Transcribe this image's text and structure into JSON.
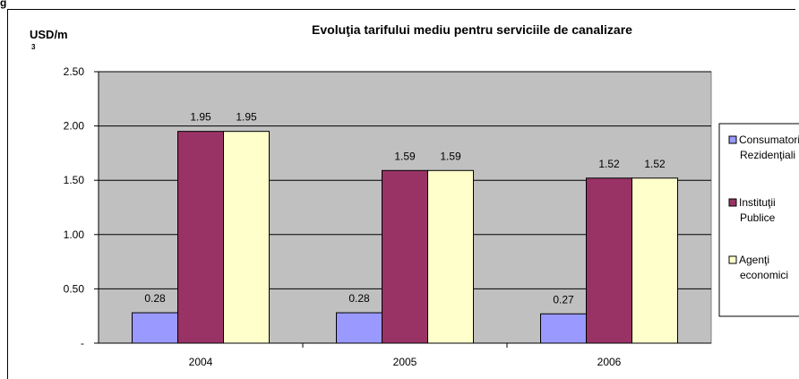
{
  "header_fragment": "g",
  "chart_data": {
    "type": "bar",
    "title": "Evoluţia tarifului mediu pentru serviciile de canalizare",
    "ylabel": "USD/m",
    "ylabel_superscript": "3",
    "xlabel": "",
    "categories": [
      "2004",
      "2005",
      "2006"
    ],
    "series": [
      {
        "name": "Consumatori Rezidenţiali",
        "legend_lines": [
          "Consumatori",
          "Rezidenţiali"
        ],
        "color": "#9999FF",
        "values": [
          0.28,
          0.28,
          0.27
        ]
      },
      {
        "name": "Instituţii Publice",
        "legend_lines": [
          "Instituţii",
          "Publice"
        ],
        "color": "#993366",
        "values": [
          1.95,
          1.59,
          1.52
        ]
      },
      {
        "name": "Agenţi economici",
        "legend_lines": [
          "Agenţi",
          "economici"
        ],
        "color": "#FFFFCC",
        "values": [
          1.95,
          1.59,
          1.52
        ]
      }
    ],
    "data_labels": [
      [
        "0.28",
        "0.28",
        "0.27"
      ],
      [
        "1.95",
        "1.59",
        "1.52"
      ],
      [
        "1.95",
        "1.59",
        "1.52"
      ]
    ],
    "yticks": [
      "-",
      "0.50",
      "1.00",
      "1.50",
      "2.00",
      "2.50"
    ],
    "ylim": [
      0,
      2.5
    ],
    "grid": true,
    "plot_background": "#C0C0C0",
    "legend_position": "right"
  }
}
